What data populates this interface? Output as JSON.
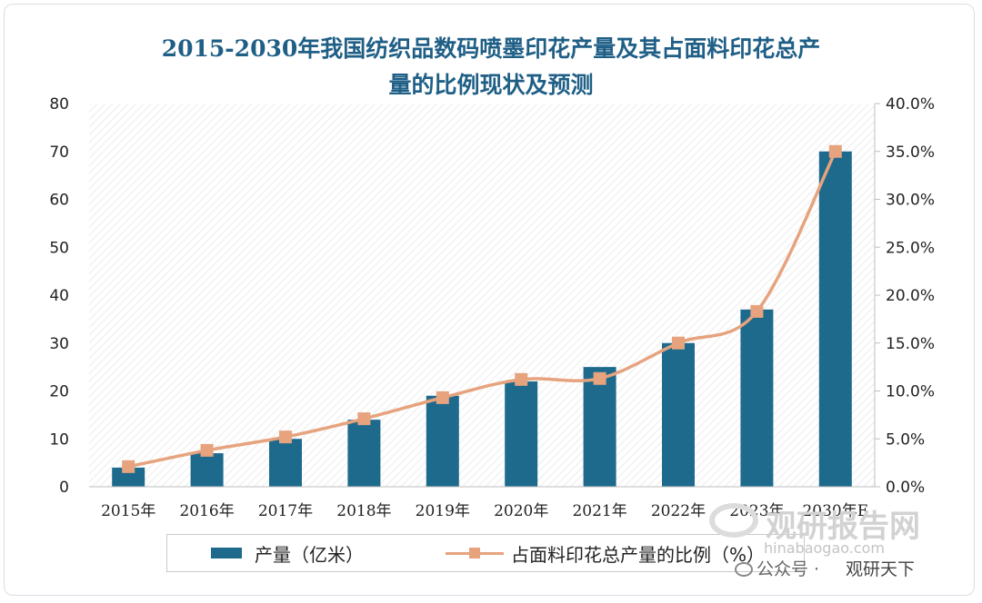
{
  "chart_data": {
    "type": "bar",
    "title_lines": [
      "2015-2030年我国纺织品数码喷墨印花产量及其占面料印花总产",
      "量的比例现状及预测"
    ],
    "categories": [
      "2015年",
      "2016年",
      "2017年",
      "2018年",
      "2019年",
      "2020年",
      "2021年",
      "2022年",
      "2023年",
      "2030年E"
    ],
    "series": [
      {
        "name": "产量（亿米）",
        "type": "bar",
        "axis": "left",
        "color": "#1e6a8d",
        "values": [
          4,
          7,
          10,
          14,
          19,
          22,
          25,
          30,
          37,
          70
        ]
      },
      {
        "name": "占面料印花总产量的比例（%）",
        "type": "line",
        "axis": "right",
        "color": "#e6a37e",
        "values": [
          2.1,
          3.8,
          5.2,
          7.1,
          9.3,
          11.2,
          11.3,
          15.0,
          18.3,
          35.0
        ]
      }
    ],
    "y_left": {
      "min": 0,
      "max": 80,
      "ticks": [
        "0",
        "10",
        "20",
        "30",
        "40",
        "50",
        "60",
        "70",
        "80"
      ]
    },
    "y_right": {
      "min": 0,
      "max": 40,
      "ticks": [
        "0.0%",
        "5.0%",
        "10.0%",
        "15.0%",
        "20.0%",
        "25.0%",
        "30.0%",
        "35.0%",
        "40.0%"
      ]
    },
    "legend_position": "bottom",
    "grid": false
  },
  "watermark": {
    "brand_cn": "观研报告网",
    "brand_en": "chinabaogao.com",
    "corner_brand_cn": "观研报告网",
    "corner_brand_en": "hinabaogao.com",
    "wechat_label": "公众号 ·",
    "account_name": "观研天下"
  }
}
